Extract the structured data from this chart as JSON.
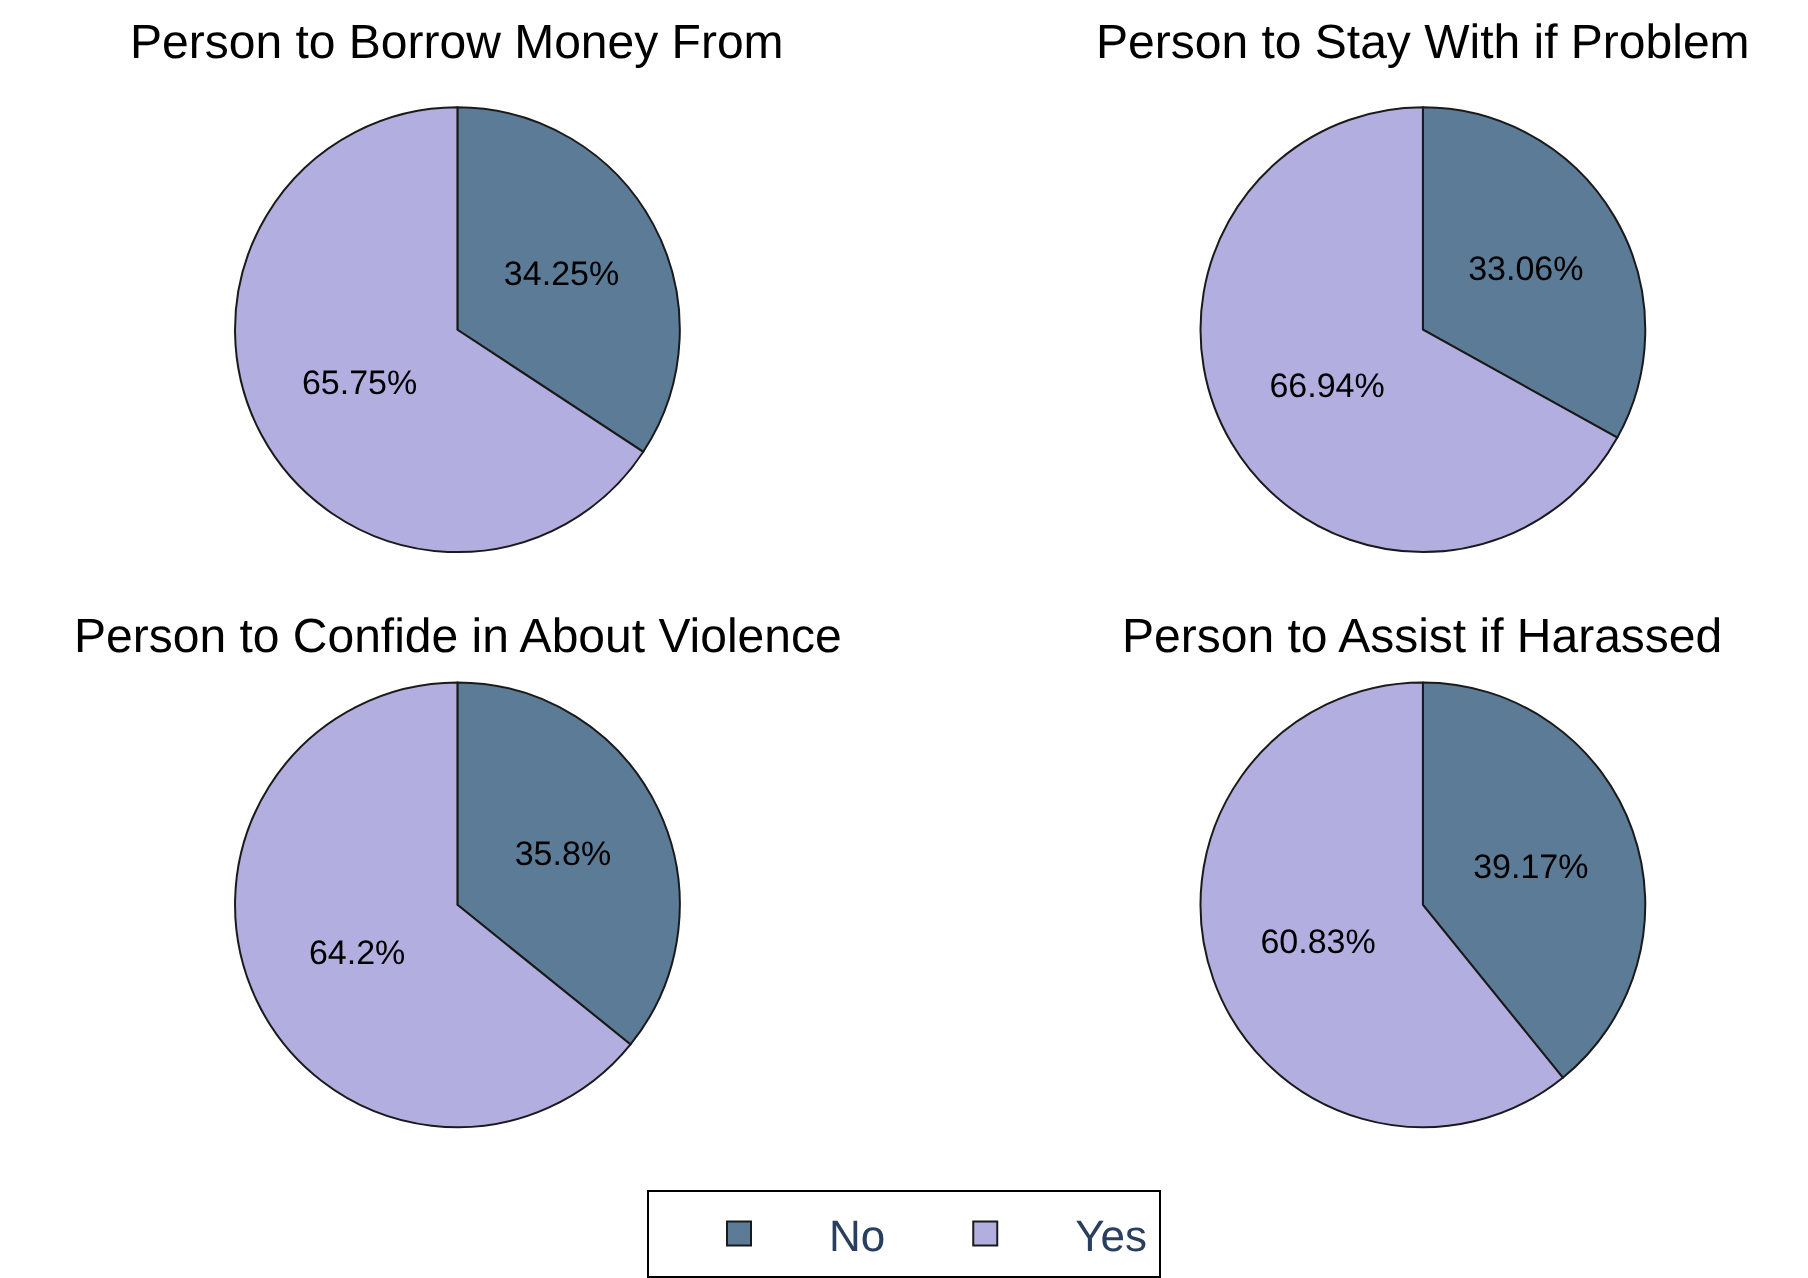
{
  "chart_data": [
    {
      "type": "pie",
      "title": "Person to Borrow Money From",
      "categories": [
        "No",
        "Yes"
      ],
      "values": [
        34.25,
        65.75
      ],
      "value_labels": [
        "34.25%",
        "65.75%"
      ],
      "colors": [
        "#5b7b97",
        "#b3aee0"
      ],
      "legend": "bottom"
    },
    {
      "type": "pie",
      "title": "Person to Stay With if Problem",
      "categories": [
        null,
        null
      ],
      "values": [
        33.06,
        66.94
      ],
      "value_labels": [
        "33.06%",
        "66.94%"
      ],
      "colors": [
        "#5b7b97",
        "#b3aee0"
      ]
    },
    {
      "type": "pie",
      "title": "Person to Confide in About Violence",
      "categories": [
        null,
        null
      ],
      "values": [
        35.8,
        64.2
      ],
      "value_labels": [
        "35.8%",
        "64.2%"
      ],
      "colors": [
        "#5b7b97",
        "#b3aee0"
      ]
    },
    {
      "type": "pie",
      "title": "Person to Assist if Harassed",
      "categories": [
        null,
        null
      ],
      "values": [
        39.17,
        60.83
      ],
      "value_labels": [
        "39.17%",
        "60.83%"
      ],
      "colors": [
        "#5b7b97",
        "#b3aee0"
      ]
    }
  ]
}
